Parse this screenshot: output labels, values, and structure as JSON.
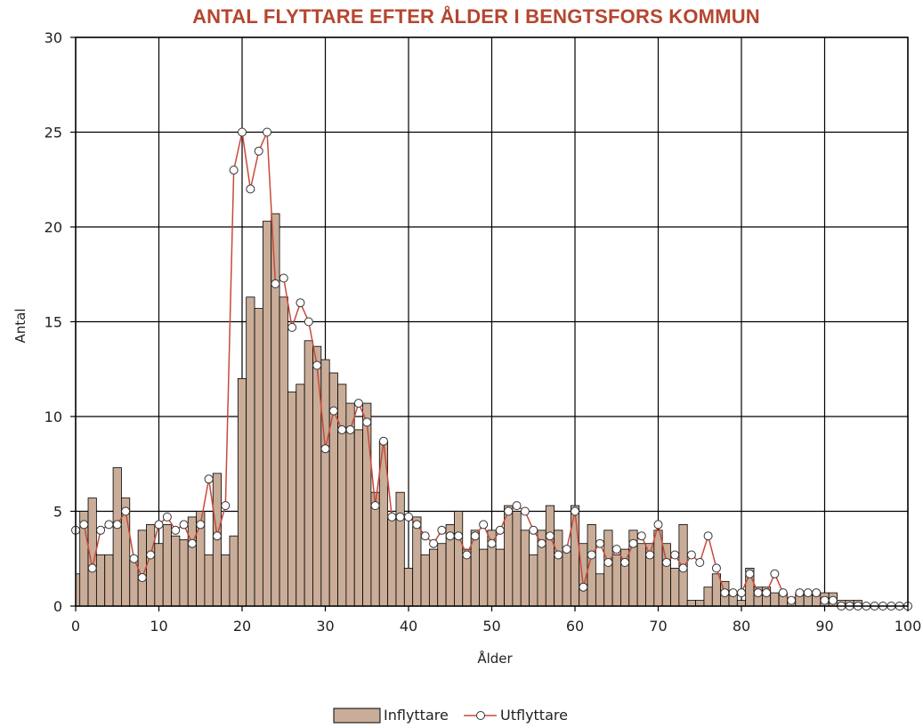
{
  "chart_data": {
    "type": "bar",
    "title": "ANTAL FLYTTARE EFTER ÅLDER I BENGTSFORS KOMMUN",
    "xlabel": "Ålder",
    "ylabel": "Antal",
    "xlim": [
      0,
      100
    ],
    "ylim": [
      0,
      30
    ],
    "x_ticks": [
      "0",
      "10",
      "20",
      "30",
      "40",
      "50",
      "60",
      "70",
      "80",
      "90",
      "100"
    ],
    "y_ticks": [
      "0",
      "5",
      "10",
      "15",
      "20",
      "25",
      "30"
    ],
    "grid": true,
    "legend_position": "bottom-center",
    "colors": {
      "bar": "#c9ad98",
      "line": "#c84a3a",
      "marker_fill": "#ffffff",
      "title": "#b5462f"
    },
    "series": [
      {
        "name": "Inflyttare",
        "type": "bar",
        "values": [
          1.7,
          5,
          5.7,
          2.7,
          2.7,
          7.3,
          5.7,
          2.5,
          4,
          4.3,
          3.3,
          4.3,
          3.7,
          3.5,
          4.7,
          5,
          2.7,
          7,
          2.7,
          3.7,
          12,
          16.3,
          15.7,
          20.3,
          20.7,
          16.3,
          11.3,
          11.7,
          14,
          13.7,
          13,
          12.3,
          11.7,
          10.7,
          9.3,
          10.7,
          6,
          8.7,
          4.7,
          6,
          2,
          4.7,
          2.7,
          3,
          3.3,
          4.3,
          5,
          3,
          4,
          3,
          4,
          3,
          5.3,
          5,
          4,
          2.7,
          4,
          5.3,
          4,
          3,
          5.3,
          3.3,
          4.3,
          1.7,
          4,
          2.7,
          3,
          4,
          3.3,
          3.3,
          4,
          3.3,
          2,
          4.3,
          0.3,
          0.3,
          1,
          1.7,
          1.3,
          0.7,
          0.3,
          2,
          1,
          1,
          0.7,
          0.7,
          0.3,
          0.7,
          0.7,
          0.7,
          0.7,
          0.7,
          0.3,
          0.3,
          0.3,
          0,
          0,
          0,
          0,
          0,
          0
        ]
      },
      {
        "name": "Utflyttare",
        "type": "line",
        "values": [
          4,
          4.3,
          2,
          4,
          4.3,
          4.3,
          5,
          2.5,
          1.5,
          2.7,
          4.3,
          4.7,
          4,
          4.3,
          3.3,
          4.3,
          6.7,
          3.7,
          5.3,
          23,
          25,
          22,
          24,
          25,
          17,
          17.3,
          14.7,
          16,
          15,
          12.7,
          8.3,
          10.3,
          9.3,
          9.3,
          10.7,
          9.7,
          5.3,
          8.7,
          4.7,
          4.7,
          4.7,
          4.3,
          3.7,
          3.3,
          4,
          3.7,
          3.7,
          2.7,
          3.7,
          4.3,
          3.3,
          4,
          5,
          5.3,
          5,
          4,
          3.3,
          3.7,
          2.7,
          3,
          5,
          1,
          2.7,
          3.3,
          2.3,
          3,
          2.3,
          3.3,
          3.7,
          2.7,
          4.3,
          2.3,
          2.7,
          2,
          2.7,
          2.3,
          3.7,
          2,
          0.7,
          0.7,
          0.7,
          1.7,
          0.7,
          0.7,
          1.7,
          0.7,
          0.3,
          0.7,
          0.7,
          0.7,
          0.3,
          0.3,
          0,
          0,
          0,
          0,
          0,
          0,
          0,
          0,
          0
        ]
      }
    ]
  }
}
